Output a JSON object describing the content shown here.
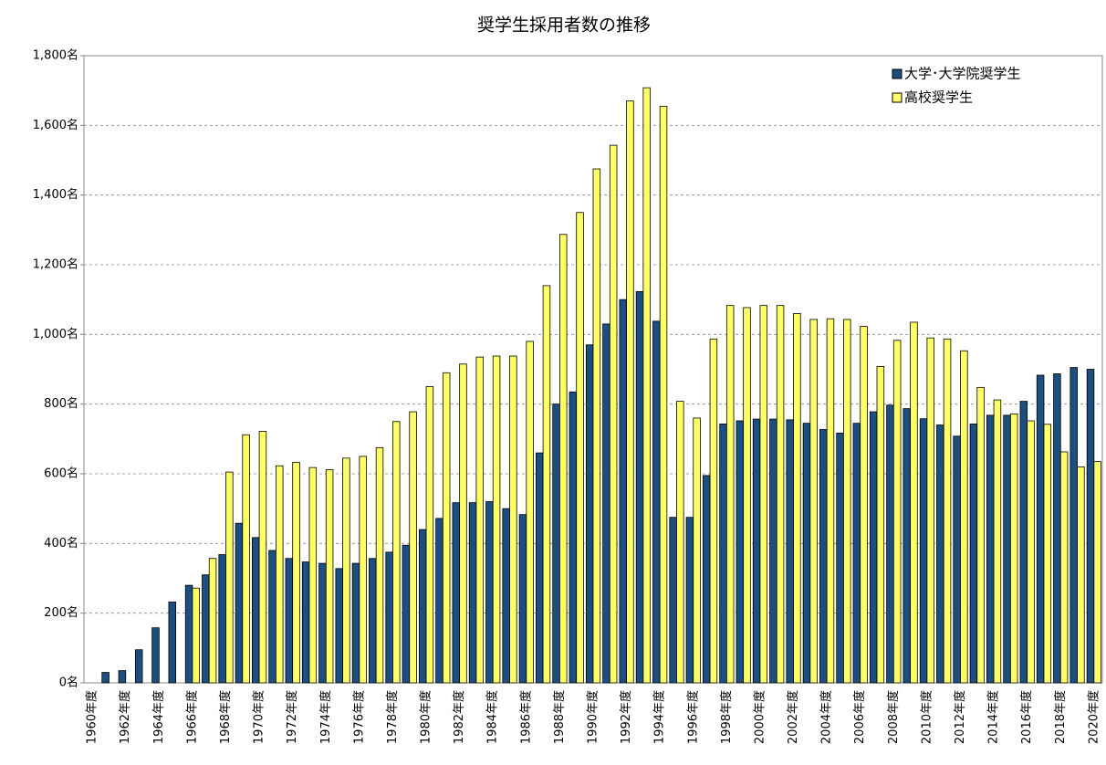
{
  "chart_data": {
    "type": "bar",
    "title": "奨学生採用者数の推移",
    "categories": [
      "1960年度",
      null,
      "1962年度",
      null,
      "1964年度",
      null,
      "1966年度",
      null,
      "1968年度",
      null,
      "1970年度",
      null,
      "1972年度",
      null,
      "1974年度",
      null,
      "1976年度",
      null,
      "1978年度",
      null,
      "1980年度",
      null,
      "1982年度",
      null,
      "1984年度",
      null,
      "1986年度",
      null,
      "1988年度",
      null,
      "1990年度",
      null,
      "1992年度",
      null,
      "1994年度",
      null,
      "1996年度",
      null,
      "1998年度",
      null,
      "2000年度",
      null,
      "2002年度",
      null,
      "2004年度",
      null,
      "2006年度",
      null,
      "2008年度",
      null,
      "2010年度",
      null,
      "2012年度",
      null,
      "2014年度",
      null,
      "2016年度",
      null,
      "2018年度",
      null,
      "2020年度"
    ],
    "series": [
      {
        "name": "大学･大学院奨学生",
        "color": "#1c4f80",
        "values": [
          null,
          30,
          35,
          95,
          158,
          232,
          280,
          310,
          368,
          458,
          417,
          380,
          357,
          347,
          343,
          328,
          343,
          357,
          375,
          395,
          440,
          472,
          517,
          517,
          520,
          500,
          483,
          660,
          800,
          835,
          970,
          1030,
          1100,
          1123,
          1038,
          475,
          475,
          595,
          743,
          752,
          757,
          757,
          755,
          745,
          727,
          717,
          745,
          778,
          797,
          787,
          758,
          740,
          708,
          743,
          768,
          768,
          808,
          883,
          887,
          905,
          900
        ]
      },
      {
        "name": "高校奨学生",
        "color": "#ffff66",
        "values": [
          null,
          null,
          null,
          null,
          null,
          null,
          272,
          357,
          605,
          712,
          722,
          623,
          633,
          618,
          612,
          645,
          650,
          675,
          750,
          778,
          850,
          890,
          915,
          935,
          938,
          938,
          980,
          1140,
          1287,
          1350,
          1475,
          1543,
          1670,
          1708,
          1655,
          808,
          760,
          987,
          1083,
          1077,
          1083,
          1083,
          1060,
          1043,
          1045,
          1043,
          1023,
          908,
          983,
          1035,
          990,
          987,
          953,
          848,
          812,
          772,
          752,
          742,
          663,
          620,
          635
        ]
      }
    ],
    "ylim": [
      0,
      1800
    ],
    "yticks": [
      {
        "value": 0,
        "label": "0名"
      },
      {
        "value": 200,
        "label": "200名"
      },
      {
        "value": 400,
        "label": "400名"
      },
      {
        "value": 600,
        "label": "600名"
      },
      {
        "value": 800,
        "label": "800名"
      },
      {
        "value": 1000,
        "label": "1,000名"
      },
      {
        "value": 1200,
        "label": "1,200名"
      },
      {
        "value": 1400,
        "label": "1,400名"
      },
      {
        "value": 1600,
        "label": "1,600名"
      },
      {
        "value": 1800,
        "label": "1,800名"
      }
    ],
    "grid": true,
    "legend": "upper right"
  }
}
